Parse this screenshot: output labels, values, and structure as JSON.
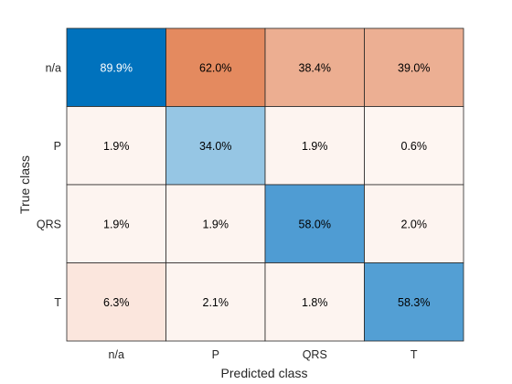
{
  "chart_data": {
    "type": "heatmap",
    "title": "",
    "xlabel": "Predicted class",
    "ylabel": "True class",
    "x_categories": [
      "n/a",
      "P",
      "QRS",
      "T"
    ],
    "y_categories": [
      "n/a",
      "P",
      "QRS",
      "T"
    ],
    "values": [
      [
        89.9,
        62.0,
        38.4,
        39.0
      ],
      [
        1.9,
        34.0,
        1.9,
        0.6
      ],
      [
        1.9,
        1.9,
        58.0,
        2.0
      ],
      [
        6.3,
        2.1,
        1.8,
        58.3
      ]
    ],
    "cell_labels": [
      [
        "89.9%",
        "62.0%",
        "38.4%",
        "39.0%"
      ],
      [
        "1.9%",
        "34.0%",
        "1.9%",
        "0.6%"
      ],
      [
        "1.9%",
        "1.9%",
        "58.0%",
        "2.0%"
      ],
      [
        "6.3%",
        "2.1%",
        "1.8%",
        "58.3%"
      ]
    ],
    "cell_colors": [
      [
        "#0072bd",
        "#e48a5f",
        "#ecae91",
        "#ecaf93"
      ],
      [
        "#fdf4f0",
        "#96c6e4",
        "#fdf4f0",
        "#fef6f2"
      ],
      [
        "#fdf4f0",
        "#fdf4f0",
        "#4f9cd3",
        "#fdf4f0"
      ],
      [
        "#fbe6dd",
        "#fdf4f0",
        "#fdf4f0",
        "#539fd4"
      ]
    ],
    "label_colors": [
      [
        "#ffffff",
        "#000000",
        "#000000",
        "#000000"
      ],
      [
        "#000000",
        "#000000",
        "#000000",
        "#000000"
      ],
      [
        "#000000",
        "#000000",
        "#000000",
        "#000000"
      ],
      [
        "#000000",
        "#000000",
        "#000000",
        "#000000"
      ]
    ],
    "grid": true
  },
  "colors": {
    "grid_line": "#262626",
    "text": "#262626",
    "background": "#ffffff"
  }
}
